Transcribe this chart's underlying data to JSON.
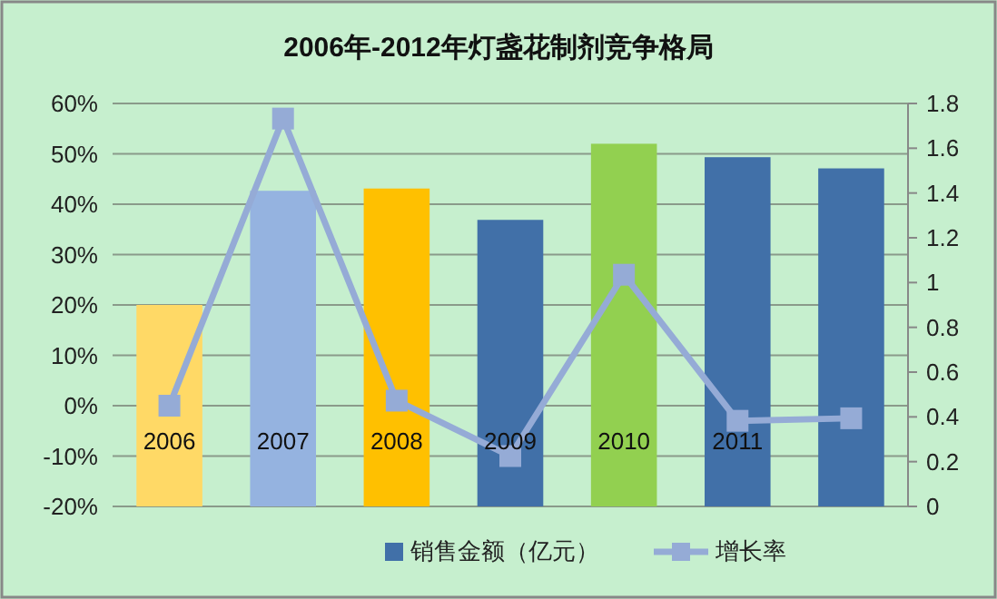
{
  "chart_data": {
    "type": "bar",
    "title": "2006年-2012年灯盏花制剂竞争格局",
    "categories": [
      "2006",
      "2007",
      "2008",
      "2009",
      "2010",
      "2011",
      null
    ],
    "series": [
      {
        "name": "销售金额（亿元）",
        "axis": "y2",
        "color": "#4170a8",
        "colors": [
          "#ffd966",
          "#95b3e0",
          "#ffc000",
          "#4170a8",
          "#92d050",
          "#4170a8",
          "#4170a8"
        ],
        "values": [
          0.9,
          1.41,
          1.42,
          1.28,
          1.62,
          1.56,
          1.51
        ]
      },
      {
        "name": "增长率",
        "type": "line",
        "axis": "y",
        "color": "#95abd6",
        "marker": "square",
        "values": [
          0,
          57,
          1,
          -10,
          26,
          -3,
          -2.5
        ]
      }
    ],
    "ylim": [
      -20,
      60
    ],
    "yticks": [
      {
        "value": -20,
        "label": "-20%"
      },
      {
        "value": -10,
        "label": "-10%"
      },
      {
        "value": 0,
        "label": "0%"
      },
      {
        "value": 10,
        "label": "10%"
      },
      {
        "value": 20,
        "label": "20%"
      },
      {
        "value": 30,
        "label": "30%"
      },
      {
        "value": 40,
        "label": "40%"
      },
      {
        "value": 50,
        "label": "50%"
      },
      {
        "value": 60,
        "label": "60%"
      }
    ],
    "y2lim": [
      0,
      1.8
    ],
    "y2ticks": [
      0,
      0.2,
      0.4,
      0.6,
      0.8,
      1,
      1.2,
      1.4,
      1.6,
      1.8
    ],
    "grid": "y",
    "legend": "bottom"
  }
}
